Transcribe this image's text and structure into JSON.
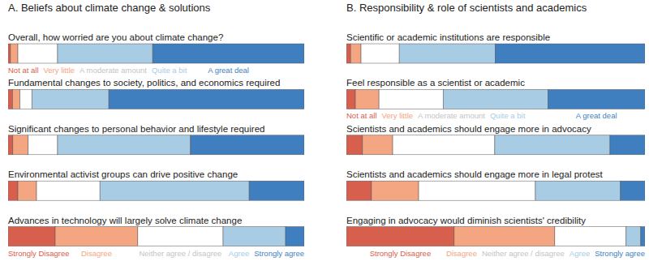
{
  "chart_data": [
    {
      "type": "bar",
      "orientation": "horizontal",
      "stacked": true,
      "title": "A. Beliefs about climate change & solutions",
      "categories": [
        "Overall, how worried are you about climate change?",
        "Fundamental changes to society, politics, and economics required",
        "Significant changes to personal behavior and lifestyle required",
        "Environmental activist groups can drive positive change",
        "Advances in technology will largely solve climate change"
      ],
      "series": [
        {
          "name": "Not at all",
          "color": "#d6604d",
          "values": [
            0.8,
            1.5,
            1.6,
            3.3,
            15.9
          ]
        },
        {
          "name": "Very little",
          "color": "#f4a582",
          "values": [
            2.5,
            2.5,
            5.2,
            6.3,
            27.9
          ]
        },
        {
          "name": "A moderate amount",
          "color": "#ffffff",
          "values": [
            13.4,
            4.0,
            9.9,
            21.4,
            28.8
          ]
        },
        {
          "name": "Quite a bit",
          "color": "#a8cce4",
          "values": [
            32.1,
            26.0,
            44.9,
            50.4,
            21.1
          ]
        },
        {
          "name": "A great deal",
          "color": "#3f7fbf",
          "values": [
            51.2,
            66.0,
            38.4,
            18.6,
            6.3
          ]
        }
      ],
      "annotations": [
        "Strongly Disagree",
        "Disagree",
        "Neither agree / disagree",
        "Agree",
        "Strongly agree"
      ],
      "xlim": [
        0,
        100
      ],
      "tick_labels": false
    },
    {
      "type": "bar",
      "orientation": "horizontal",
      "stacked": true,
      "title": "B. Responsibility & role of scientists and academics",
      "categories": [
        "Scientific or academic institutions are responsible",
        "Feel responsible as a scientist or academic",
        "Scientists and academics should engage more in advocacy",
        "Scientists and academics should engage more in legal protest",
        "Engaging in advocacy would diminish scientists' credibility"
      ],
      "series": [
        {
          "name": "Not at all",
          "color": "#d6604d",
          "values": [
            1.4,
            3.0,
            5.4,
            8.4,
            36.1
          ]
        },
        {
          "name": "Very little",
          "color": "#f4a582",
          "values": [
            3.5,
            7.9,
            10.1,
            15.8,
            33.7
          ]
        },
        {
          "name": "A moderate amount",
          "color": "#ffffff",
          "values": [
            12.8,
            21.5,
            34.2,
            39.1,
            23.9
          ]
        },
        {
          "name": "Quite a bit",
          "color": "#a8cce4",
          "values": [
            32.1,
            35.1,
            38.6,
            28.5,
            4.9
          ]
        },
        {
          "name": "A great deal",
          "color": "#3f7fbf",
          "values": [
            50.2,
            32.5,
            11.7,
            8.2,
            1.4
          ]
        }
      ],
      "annotations": [
        "Strongly Disagree",
        "Disagree",
        "Neither agree / disagree",
        "Agree",
        "Strongly agree"
      ],
      "xlim": [
        0,
        100
      ],
      "tick_labels": false
    }
  ]
}
